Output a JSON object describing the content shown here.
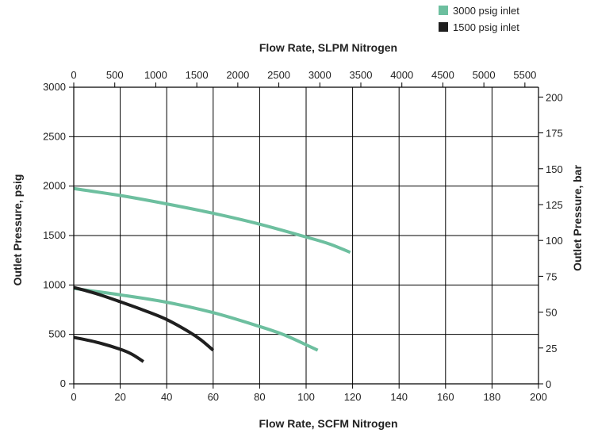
{
  "chart_data": {
    "type": "line",
    "title": "",
    "legend": [
      {
        "label": "3000 psig inlet",
        "color": "#6dbf9f"
      },
      {
        "label": "1500 psig inlet",
        "color": "#1f1f1f"
      }
    ],
    "legend_placement": "top-right",
    "grid": true,
    "x_bottom": {
      "label": "Flow Rate, SCFM Nitrogen",
      "range": [
        0,
        200
      ],
      "ticks": [
        0,
        20,
        40,
        60,
        80,
        100,
        120,
        140,
        160,
        180,
        200
      ]
    },
    "x_top": {
      "label": "Flow Rate, SLPM Nitrogen",
      "ticks": [
        0,
        500,
        1000,
        1500,
        2000,
        2500,
        3000,
        3500,
        4000,
        4500,
        5000,
        5500
      ],
      "scfm_per_unit": 0.0353
    },
    "y_left": {
      "label": "Outlet Pressure, psig",
      "range": [
        0,
        3000
      ],
      "ticks": [
        0,
        500,
        1000,
        1500,
        2000,
        2500,
        3000
      ]
    },
    "y_right": {
      "label": "Outlet Pressure, bar",
      "ticks": [
        0,
        25,
        50,
        75,
        100,
        125,
        150,
        175,
        200
      ],
      "psig_per_unit": 14.5038
    },
    "series": [
      {
        "name": "3000 psig inlet",
        "color": "#6dbf9f",
        "points": [
          [
            0,
            1975
          ],
          [
            20,
            1905
          ],
          [
            40,
            1820
          ],
          [
            60,
            1725
          ],
          [
            80,
            1615
          ],
          [
            100,
            1485
          ],
          [
            110,
            1415
          ],
          [
            119,
            1330
          ]
        ]
      },
      {
        "name": "3000 psig inlet",
        "color": "#6dbf9f",
        "points": [
          [
            0,
            965
          ],
          [
            20,
            900
          ],
          [
            40,
            825
          ],
          [
            60,
            720
          ],
          [
            80,
            580
          ],
          [
            90,
            500
          ],
          [
            100,
            395
          ],
          [
            105,
            340
          ]
        ]
      },
      {
        "name": "1500 psig inlet",
        "color": "#1f1f1f",
        "points": [
          [
            0,
            975
          ],
          [
            10,
            910
          ],
          [
            20,
            830
          ],
          [
            30,
            745
          ],
          [
            40,
            650
          ],
          [
            50,
            520
          ],
          [
            55,
            440
          ],
          [
            60,
            340
          ]
        ]
      },
      {
        "name": "1500 psig inlet",
        "color": "#1f1f1f",
        "points": [
          [
            0,
            470
          ],
          [
            10,
            420
          ],
          [
            20,
            350
          ],
          [
            25,
            300
          ],
          [
            30,
            225
          ]
        ]
      }
    ]
  }
}
